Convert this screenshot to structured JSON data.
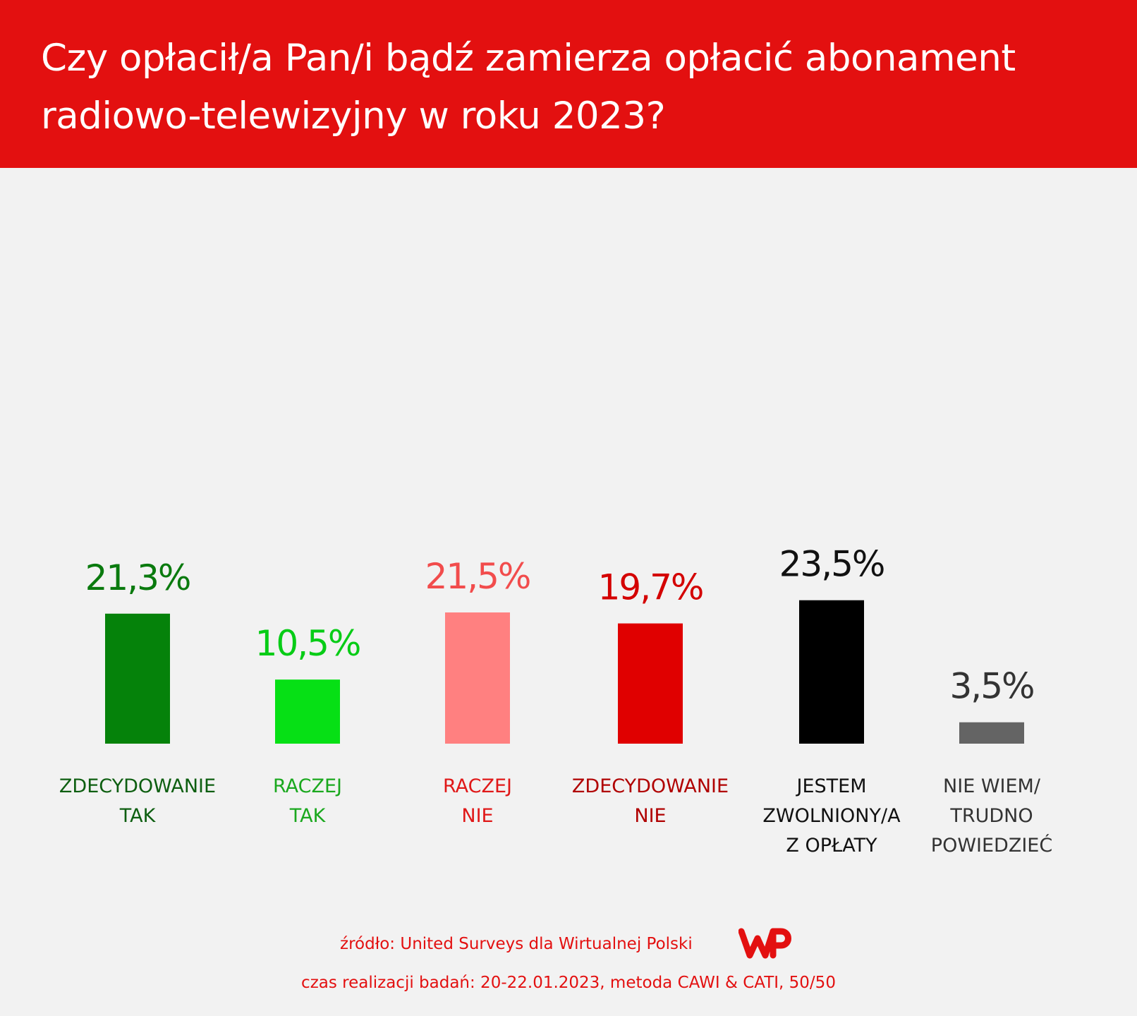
{
  "title": "Czy opłacił/a Pan/i bądź zamierza opłacić abonament radiowo-telewizyjny w roku 2023?",
  "source": "źródło: United Surveys dla Wirtualnej Polski",
  "logo_icon": "wp-logo-icon",
  "method": "czas realizacji badań: 20-22.01.2023, metoda CAWI & CATI, 50/50",
  "chart_data": {
    "type": "bar",
    "categories": [
      "ZDECYDOWANIE TAK",
      "RACZEJ TAK",
      "RACZEJ NIE",
      "ZDECYDOWANIE NIE",
      "JESTEM ZWOLNIONY/A Z OPŁATY",
      "NIE WIEM/ TRUDNO POWIEDZIEĆ"
    ],
    "category_lines": [
      [
        "ZDECYDOWANIE",
        "TAK"
      ],
      [
        "RACZEJ",
        "TAK"
      ],
      [
        "RACZEJ",
        "NIE"
      ],
      [
        "ZDECYDOWANIE",
        "NIE"
      ],
      [
        "JESTEM",
        "ZWOLNIONY/A",
        "Z OPŁATY"
      ],
      [
        "NIE WIEM/",
        "TRUDNO",
        "POWIEDZIEĆ"
      ]
    ],
    "values": [
      21.3,
      10.5,
      21.5,
      19.7,
      23.5,
      3.5
    ],
    "value_labels": [
      "21,3%",
      "10,5%",
      "21,5%",
      "19,7%",
      "23,5%",
      "3,5%"
    ],
    "bar_colors": [
      "#05820a",
      "#06e015",
      "#ff8080",
      "#e00000",
      "#000000",
      "#646464"
    ],
    "value_label_colors": [
      "#0a7a0e",
      "#07cc16",
      "#f24c4c",
      "#d40000",
      "#111111",
      "#333333"
    ],
    "category_label_colors": [
      "#0d5e10",
      "#1aa81e",
      "#e01818",
      "#b00000",
      "#111111",
      "#333333"
    ],
    "ylim": [
      0,
      25
    ]
  }
}
